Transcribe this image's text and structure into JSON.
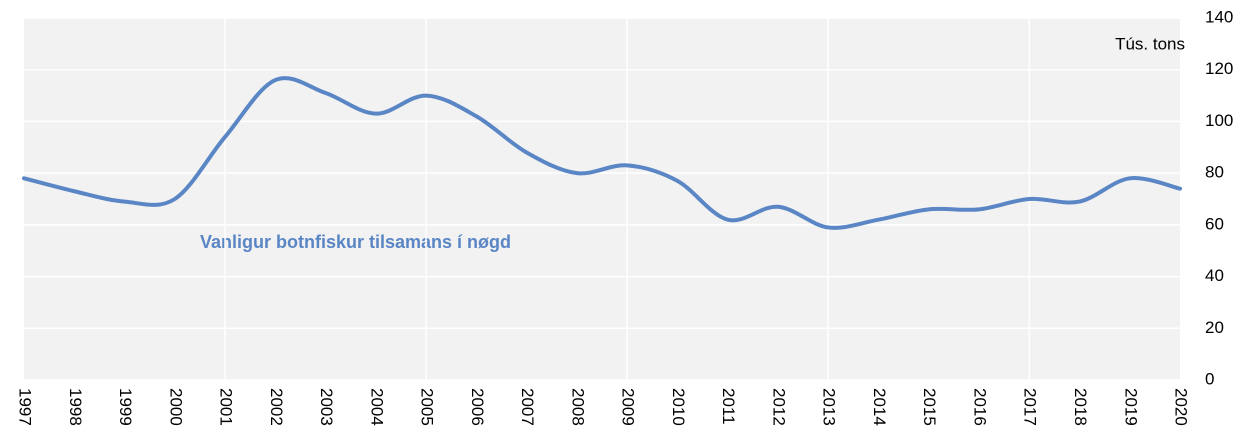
{
  "chart_data": {
    "type": "line",
    "y_label": "Tús. tons",
    "categories": [
      "1997",
      "1998",
      "1999",
      "2000",
      "2001",
      "2002",
      "2003",
      "2004",
      "2005",
      "2006",
      "2007",
      "2008",
      "2009",
      "2010",
      "2011",
      "2012",
      "2013",
      "2014",
      "2015",
      "2016",
      "2017",
      "2018",
      "2019",
      "2020"
    ],
    "series": [
      {
        "name": "Vanligur botnfiskur tilsamans í nøgd",
        "color": "#5b86c5",
        "values": [
          78,
          73,
          69,
          70,
          94,
          116,
          111,
          103,
          110,
          102,
          88,
          80,
          83,
          77,
          62,
          67,
          59,
          62,
          66,
          66,
          70,
          69,
          78,
          74
        ]
      }
    ],
    "ylim": [
      0,
      140
    ],
    "yticks": [
      0,
      20,
      40,
      60,
      80,
      100,
      120,
      140
    ],
    "grid": true,
    "smooth": true
  }
}
